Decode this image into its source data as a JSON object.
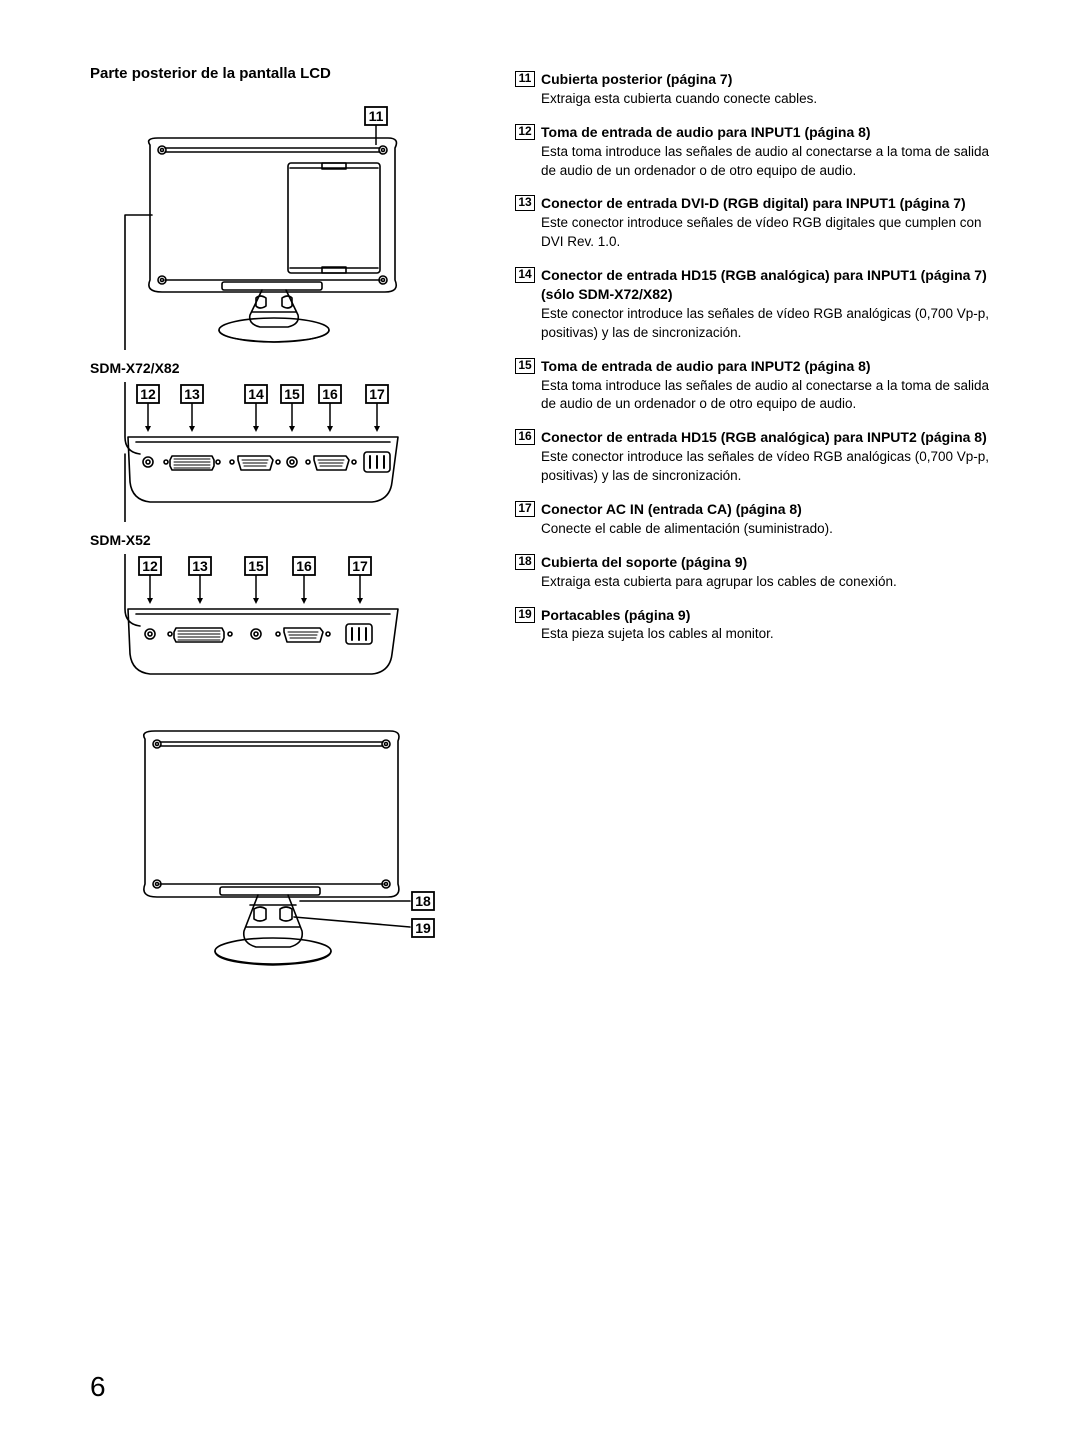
{
  "left": {
    "title": "Parte posterior de la pantalla LCD",
    "label1": "SDM-X72/X82",
    "label2": "SDM-X52",
    "callouts_top": [
      "11"
    ],
    "callouts_panel1": [
      "12",
      "13",
      "14",
      "15",
      "16",
      "17"
    ],
    "callouts_panel2": [
      "12",
      "13",
      "15",
      "16",
      "17"
    ],
    "callouts_bottom": [
      "18",
      "19"
    ]
  },
  "right": {
    "items": [
      {
        "num": "11",
        "title": "Cubierta posterior (página 7)",
        "desc": "Extraiga esta cubierta cuando conecte cables."
      },
      {
        "num": "12",
        "title": "Toma de entrada de audio para INPUT1 (página 8)",
        "desc": "Esta toma introduce las señales de audio al conectarse a la toma de salida de audio de un ordenador o de otro equipo de audio."
      },
      {
        "num": "13",
        "title": "Conector de entrada DVI-D (RGB digital) para INPUT1 (página 7)",
        "desc": "Este conector introduce señales de vídeo RGB digitales que cumplen con DVI Rev. 1.0."
      },
      {
        "num": "14",
        "title": "Conector de entrada HD15 (RGB analógica) para INPUT1 (página 7) (sólo SDM-X72/X82)",
        "desc": "Este conector introduce las señales de vídeo RGB analógicas (0,700 Vp-p, positivas) y las de sincronización."
      },
      {
        "num": "15",
        "title": "Toma de entrada de audio para INPUT2 (página 8)",
        "desc": "Esta toma introduce las señales de audio al conectarse a la toma de salida de audio de un ordenador o de otro equipo de audio."
      },
      {
        "num": "16",
        "title": "Conector de entrada HD15 (RGB analógica) para INPUT2 (página 8)",
        "desc": "Este conector introduce las señales de vídeo RGB analógicas (0,700 Vp-p, positivas) y las de sincronización."
      },
      {
        "num": "17",
        "title": "Conector AC IN (entrada CA) (página 8)",
        "desc": "Conecte el cable de alimentación (suministrado)."
      },
      {
        "num": "18",
        "title": "Cubierta del soporte (página 9)",
        "desc": "Extraiga esta cubierta para agrupar los cables de conexión."
      },
      {
        "num": "19",
        "title": "Portacables (página 9)",
        "desc": "Esta pieza sujeta los cables al monitor."
      }
    ]
  },
  "page_number": "6",
  "style": {
    "text_color": "#000000",
    "background": "#ffffff",
    "stroke": "#000000",
    "stroke_width": 1.6,
    "title_fontsize": 15,
    "body_fontsize": 13.5,
    "callout_box": {
      "w": 22,
      "h": 18,
      "stroke_w": 1.8,
      "font_size": 14
    }
  }
}
